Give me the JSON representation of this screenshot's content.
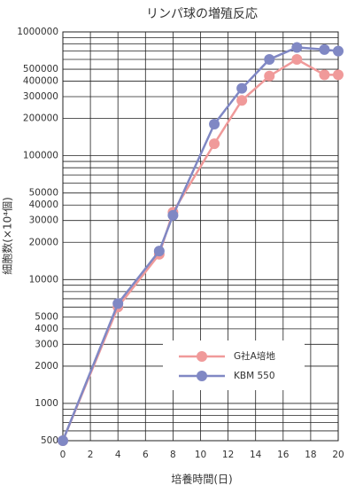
{
  "chart_data": {
    "type": "line",
    "title": "リンパ球の増殖反応",
    "xlabel": "培養時間(日)",
    "ylabel": "細胞数(×10⁴個)",
    "xlim": [
      0,
      20
    ],
    "xticks": [
      0,
      2,
      4,
      6,
      8,
      10,
      12,
      14,
      16,
      18,
      20
    ],
    "ylim": [
      500,
      1000000
    ],
    "ylog": true,
    "grid": true,
    "yticks": [
      500,
      1000,
      2000,
      3000,
      4000,
      5000,
      10000,
      20000,
      30000,
      40000,
      50000,
      100000,
      200000,
      300000,
      400000,
      500000,
      1000000
    ],
    "yminor": [
      600,
      700,
      800,
      900,
      6000,
      7000,
      8000,
      9000,
      60000,
      70000,
      80000,
      90000,
      600000,
      700000,
      800000,
      900000
    ],
    "legend": "lower right",
    "series": [
      {
        "name": "G社A培地",
        "color": "#f09a9a",
        "x": [
          0,
          4,
          7,
          8,
          11,
          13,
          15,
          17,
          19,
          20
        ],
        "values": [
          500,
          6000,
          16000,
          35000,
          125000,
          280000,
          440000,
          600000,
          450000,
          450000
        ]
      },
      {
        "name": "KBM 550",
        "color": "#8088c4",
        "x": [
          0,
          4,
          7,
          8,
          11,
          13,
          15,
          17,
          19,
          20
        ],
        "values": [
          500,
          6400,
          17000,
          33000,
          180000,
          350000,
          600000,
          750000,
          720000,
          700000
        ]
      }
    ]
  }
}
